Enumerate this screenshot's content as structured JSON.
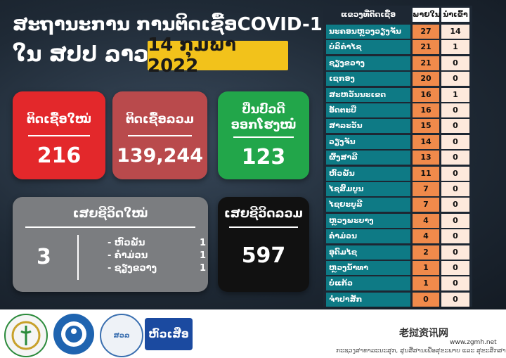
{
  "header": {
    "title_line1": "ສະຖານະການ ການຕິດເຊື້ອCOVID-19",
    "title_line2": "ໃນ ສປປ ລາວ",
    "date": "14 ກຸມພາ 2022"
  },
  "cards": {
    "new_cases": {
      "label": "ຕິດເຊື້ອໃໝ່",
      "value": "216"
    },
    "total_cases": {
      "label": "ຕິດເຊື້ອລວມ",
      "value": "139,244"
    },
    "recovered": {
      "label_line1": "ປິ່ນປົວດີ",
      "label_line2": "ອອກໂຮງໝໍ",
      "value": "123"
    },
    "new_deaths": {
      "label": "ເສຍຊີວິດໃໝ່",
      "value": "3",
      "breakdown": [
        {
          "place": "- ຫົວພັນ",
          "count": "1"
        },
        {
          "place": "- ຄຳມ່ວນ",
          "count": "1"
        },
        {
          "place": "- ຊຽງຂວາງ",
          "count": "1"
        }
      ]
    },
    "total_deaths": {
      "label": "ເສຍຊີວິດລວມ",
      "value": "597"
    }
  },
  "table": {
    "headers": {
      "area": "ແຂວງທີ່ຕິດເຊື້ອ",
      "local": "ພາຍໃນ",
      "imported": "ນຳເຂົ້າ"
    },
    "rows": [
      {
        "name": "ນະຄອນຫຼວງວຽງຈັນ",
        "local": "27",
        "imported": "14"
      },
      {
        "name": "ບໍລິຄຳໄຊ",
        "local": "21",
        "imported": "1"
      },
      {
        "name": "ຊຽງຂວາງ",
        "local": "21",
        "imported": "0"
      },
      {
        "name": "ເຊກອງ",
        "local": "20",
        "imported": "0"
      },
      {
        "name": "ສະຫວັນນະເຂດ",
        "local": "16",
        "imported": "1"
      },
      {
        "name": "ອັດຕະປື",
        "local": "16",
        "imported": "0"
      },
      {
        "name": "ສາລະວັນ",
        "local": "15",
        "imported": "0"
      },
      {
        "name": "ວຽງຈັນ",
        "local": "14",
        "imported": "0"
      },
      {
        "name": "ຜົ້ງສາລີ",
        "local": "13",
        "imported": "0"
      },
      {
        "name": "ຫົວພັນ",
        "local": "11",
        "imported": "0"
      },
      {
        "name": "ໄຊສົມບູນ",
        "local": "7",
        "imported": "0"
      },
      {
        "name": "ໄຊຍະບູລີ",
        "local": "7",
        "imported": "0"
      },
      {
        "name": "ຫຼວງພະບາງ",
        "local": "4",
        "imported": "0"
      },
      {
        "name": "ຄຳມ່ວນ",
        "local": "4",
        "imported": "0"
      },
      {
        "name": "ອຸດົມໄຊ",
        "local": "2",
        "imported": "0"
      },
      {
        "name": "ຫຼວງນ້ຳທາ",
        "local": "1",
        "imported": "0"
      },
      {
        "name": "ບໍ່ແກ້ວ",
        "local": "1",
        "imported": "0"
      },
      {
        "name": "ຈຳປາສັກ",
        "local": "0",
        "imported": "0"
      }
    ]
  },
  "footer": {
    "logos": [
      "ministry-of-health-logo",
      "health-promotion-logo",
      "nuol-logo",
      "tigerhead-logo"
    ],
    "tigerhead_text": "ຫົວເສືອ",
    "nuol_text": "ສວລ",
    "credit": "ກະຊວງສາທາລະນະສຸກ, ສູນສື່ສານເພື່ອສຸຂະພາບ ແລະ ສຸຂະສຶກສາ",
    "watermark": "老挝资讯网",
    "watermark_url": "www.zgmh.net"
  },
  "colors": {
    "new": "#e3282b",
    "total": "#b94a4c",
    "recovered": "#22a64a",
    "deaths": "#7b7d80",
    "death_total": "#111111",
    "date_box": "#f2c21b",
    "row_name": "#0e7a85",
    "row_local": "#f08a4b"
  }
}
